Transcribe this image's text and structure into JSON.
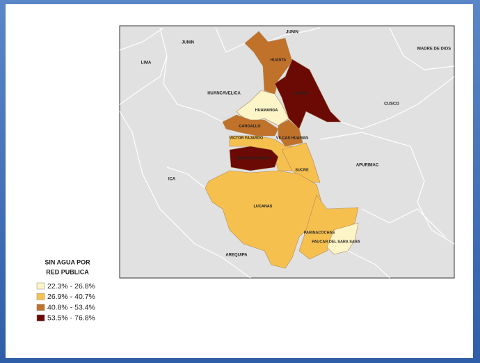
{
  "map": {
    "neighbours": [
      "JUNIN",
      "JUNIN",
      "LIMA",
      "HUANCAVELICA",
      "CUSCO",
      "MADRE DE DIOS",
      "APURIMAC",
      "ICA",
      "AREQUIPA"
    ],
    "provinces": [
      {
        "label": "HUANTA",
        "color": "#c0712a"
      },
      {
        "label": "LA MAR",
        "color": "#6b0a05"
      },
      {
        "label": "HUAMANGA",
        "color": "#fdf5c8"
      },
      {
        "label": "CANGALLO",
        "color": "#c0712a"
      },
      {
        "label": "VILCAS HUAMAN",
        "color": "#c0712a"
      },
      {
        "label": "VICTOR FAJARDO",
        "color": "#f6c04f"
      },
      {
        "label": "HUANCA SANCOS",
        "color": "#6b0a05"
      },
      {
        "label": "SUCRE",
        "color": "#f6c04f"
      },
      {
        "label": "LUCANAS",
        "color": "#f6c04f"
      },
      {
        "label": "PARINACOCHAS",
        "color": "#f6c04f"
      },
      {
        "label": "PAUCAR DEL SARA SARA",
        "color": "#fdf5c8"
      }
    ]
  },
  "legend": {
    "title_lines": [
      "SIN AGUA POR",
      "RED PUBLICA"
    ],
    "entries": [
      {
        "label": "22.3% - 26.8%",
        "color": "#fdf5c8"
      },
      {
        "label": "26.9% - 40.7%",
        "color": "#f6c04f"
      },
      {
        "label": "40.8% - 53.4%",
        "color": "#c0712a"
      },
      {
        "label": "53.5% - 76.8%",
        "color": "#6b0a05"
      }
    ]
  }
}
